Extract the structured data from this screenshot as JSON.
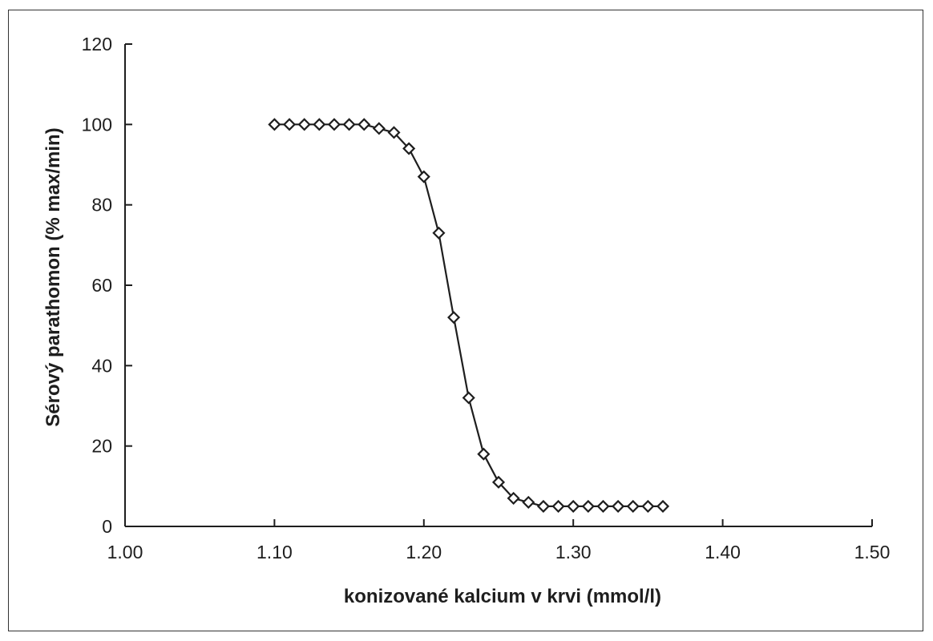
{
  "chart_data": {
    "type": "scatter",
    "title": "",
    "xlabel": "konizované kalcium v krvi (mmol/l)",
    "ylabel": "Sérový parathomon (% max/min)",
    "xlim": [
      1.0,
      1.5
    ],
    "ylim": [
      0,
      120
    ],
    "x_ticks": [
      1.0,
      1.1,
      1.2,
      1.3,
      1.4,
      1.5
    ],
    "x_tick_labels": [
      "1.00",
      "1.10",
      "1.20",
      "1.30",
      "1.40",
      "1.50"
    ],
    "y_ticks": [
      0,
      20,
      40,
      60,
      80,
      100,
      120
    ],
    "y_tick_labels": [
      "0",
      "20",
      "40",
      "60",
      "80",
      "100",
      "120"
    ],
    "grid": false,
    "legend": "none",
    "marker": "diamond",
    "series": [
      {
        "x": [
          1.1,
          1.11,
          1.12,
          1.13,
          1.14,
          1.15,
          1.16,
          1.17,
          1.18,
          1.19,
          1.2,
          1.21,
          1.22,
          1.23,
          1.24,
          1.25,
          1.26,
          1.27,
          1.28,
          1.29,
          1.3,
          1.31,
          1.32,
          1.33,
          1.34,
          1.35,
          1.36
        ],
        "y": [
          100,
          100,
          100,
          100,
          100,
          100,
          100,
          99,
          98,
          94,
          87,
          73,
          52,
          32,
          18,
          11,
          7,
          6,
          5,
          5,
          5,
          5,
          5,
          5,
          5,
          5,
          5
        ]
      }
    ],
    "fit_curve": "sigmoid"
  }
}
